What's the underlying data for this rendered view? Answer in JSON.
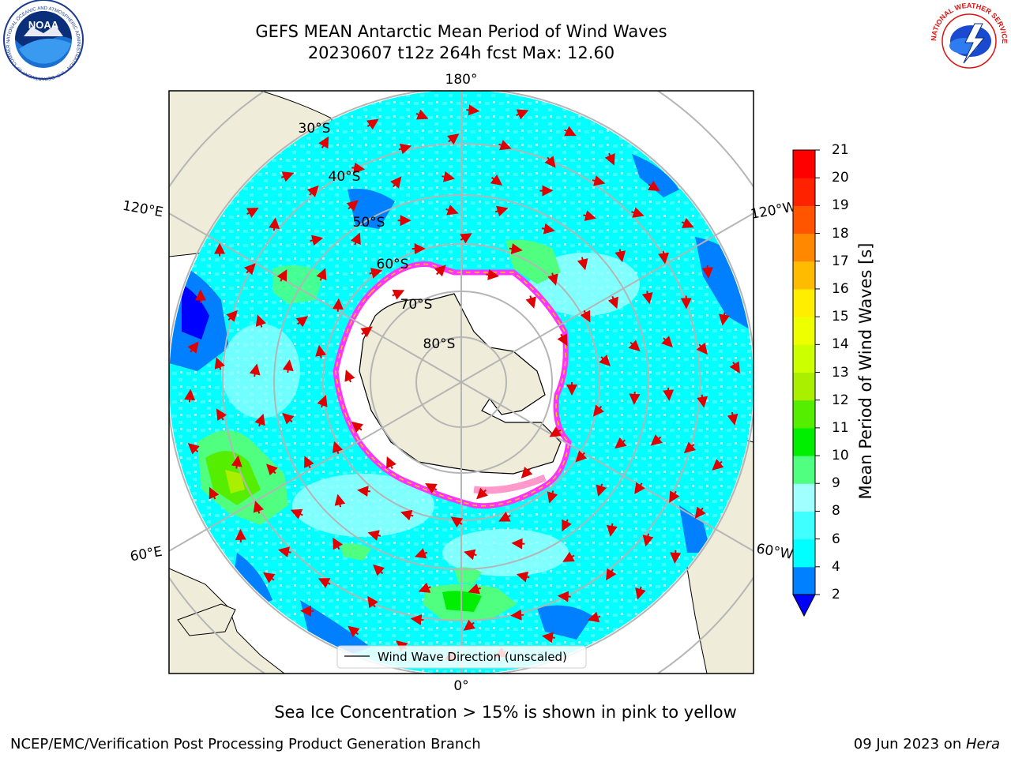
{
  "title": {
    "line1": "GEFS MEAN Antarctic Mean Period of Wind Waves",
    "line2": "20230607 t12z 264h fcst   Max: 12.60"
  },
  "map": {
    "projection": "south-polar-stereographic",
    "lon_labels": {
      "top": "180°",
      "bottom": "0°",
      "upper_left": "120°E",
      "lower_left": "60°E",
      "upper_right": "120°W",
      "lower_right": "60°W"
    },
    "lat_labels": [
      "30°S",
      "40°S",
      "50°S",
      "60°S",
      "70°S",
      "80°S"
    ],
    "legend_label": "Wind Wave Direction (unscaled)",
    "land_color": "#efecd9",
    "sea_ice_colors": [
      "#ff33ff",
      "#ff99cc",
      "#ffcc00"
    ]
  },
  "colorbar": {
    "label": "Mean Period of Wind Waves [s]",
    "ticks": [
      "2",
      "4",
      "6",
      "8",
      "9",
      "10",
      "11",
      "12",
      "13",
      "14",
      "15",
      "16",
      "17",
      "18",
      "19",
      "20",
      "21"
    ],
    "colors": [
      "#0000ff",
      "#0080ff",
      "#00ffff",
      "#40ffff",
      "#a0ffff",
      "#50ff80",
      "#00ee00",
      "#55ee00",
      "#aaee00",
      "#ccff00",
      "#eeff00",
      "#ffee00",
      "#ffbb00",
      "#ff8800",
      "#ff5500",
      "#ff2200",
      "#ff0000"
    ],
    "extend_color": "#0000ff"
  },
  "bottom_note": "Sea Ice Concentration > 15% is shown in pink to yellow",
  "footer": {
    "left": "NCEP/EMC/Verification Post Processing Product Generation Branch",
    "right_prefix": "09 Jun 2023 on ",
    "right_italic": "Hera"
  },
  "logos": {
    "noaa": {
      "text": "NOAA",
      "ring": "NATIONAL OCEANIC AND ATMOSPHERIC ADMINISTRATION · U.S. DEPARTMENT OF COMMERCE"
    },
    "nws": {
      "ring": "NATIONAL WEATHER SERVICE"
    }
  }
}
